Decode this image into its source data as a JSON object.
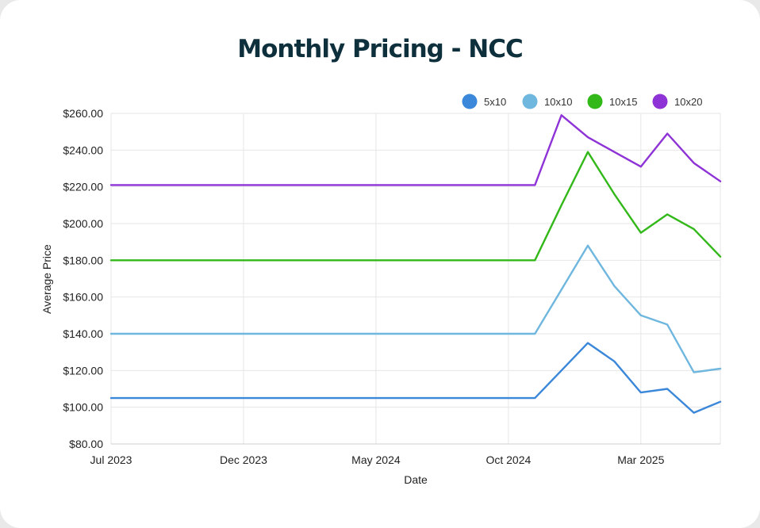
{
  "chart_data": {
    "type": "line",
    "title": "Monthly Pricing - NCC",
    "xlabel": "Date",
    "ylabel": "Average Price",
    "ylim": [
      80,
      260
    ],
    "yticks": [
      80,
      100,
      120,
      140,
      160,
      180,
      200,
      220,
      240,
      260
    ],
    "ytick_labels": [
      "$80.00",
      "$100.00",
      "$120.00",
      "$140.00",
      "$160.00",
      "$180.00",
      "$200.00",
      "$220.00",
      "$240.00",
      "$260.00"
    ],
    "xlim": [
      "2023-07",
      "2025-06"
    ],
    "xticks": [
      "2023-07",
      "2023-12",
      "2024-05",
      "2024-10",
      "2025-03"
    ],
    "xtick_labels": [
      "Jul 2023",
      "Dec 2023",
      "May 2024",
      "Oct 2024",
      "Mar 2025"
    ],
    "grid": true,
    "legend_position": "top-right",
    "x": [
      "2023-07",
      "2024-11",
      "2024-12",
      "2025-01",
      "2025-02",
      "2025-03",
      "2025-04",
      "2025-05",
      "2025-06"
    ],
    "series": [
      {
        "name": "5x10",
        "color": "#3b87d9",
        "values": [
          105,
          105,
          120,
          135,
          125,
          108,
          110,
          97,
          103
        ]
      },
      {
        "name": "10x10",
        "color": "#6fb7de",
        "values": [
          140,
          140,
          164,
          188,
          166,
          150,
          145,
          119,
          121
        ]
      },
      {
        "name": "10x15",
        "color": "#33b81a",
        "values": [
          180,
          180,
          210,
          239,
          216,
          195,
          205,
          197,
          182
        ]
      },
      {
        "name": "10x20",
        "color": "#8e33d6",
        "values": [
          221,
          221,
          259,
          247,
          239,
          231,
          249,
          233,
          223
        ]
      }
    ]
  }
}
